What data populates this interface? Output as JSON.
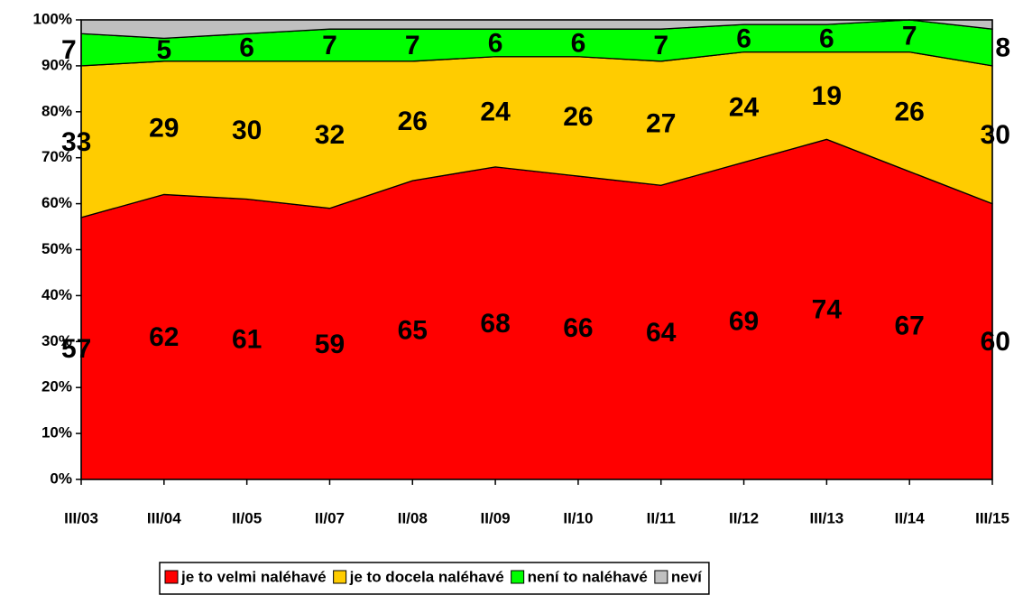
{
  "chart_data": {
    "type": "stacked_area",
    "categories": [
      "III/03",
      "III/04",
      "II/05",
      "II/07",
      "II/08",
      "II/09",
      "II/10",
      "II/11",
      "II/12",
      "III/13",
      "II/14",
      "III/15"
    ],
    "series": [
      {
        "name": "je to velmi naléhavé",
        "color": "#ff0000",
        "values": [
          57,
          62,
          61,
          59,
          65,
          68,
          66,
          64,
          69,
          74,
          67,
          60
        ],
        "labels": true
      },
      {
        "name": "je to docela naléhavé",
        "color": "#ffcc00",
        "values": [
          33,
          29,
          30,
          32,
          26,
          24,
          26,
          27,
          24,
          19,
          26,
          30
        ],
        "labels": true
      },
      {
        "name": "není to naléhavé",
        "color": "#00ff00",
        "values": [
          7,
          5,
          6,
          7,
          7,
          6,
          6,
          7,
          6,
          6,
          7,
          8
        ],
        "labels": true
      },
      {
        "name": "neví",
        "color": "#c0c0c0",
        "values": [
          3,
          4,
          3,
          2,
          2,
          2,
          2,
          2,
          1,
          1,
          0,
          2
        ],
        "labels": false
      }
    ],
    "ylim": [
      0,
      100
    ],
    "yticks": [
      {
        "value": 0,
        "label": "0%"
      },
      {
        "value": 10,
        "label": "10%"
      },
      {
        "value": 20,
        "label": "20%"
      },
      {
        "value": 30,
        "label": "30%"
      },
      {
        "value": 40,
        "label": "40%"
      },
      {
        "value": 50,
        "label": "50%"
      },
      {
        "value": 60,
        "label": "60%"
      },
      {
        "value": 70,
        "label": "70%"
      },
      {
        "value": 80,
        "label": "80%"
      },
      {
        "value": 90,
        "label": "90%"
      },
      {
        "value": 100,
        "label": "100%"
      }
    ],
    "legend": "bottom"
  }
}
